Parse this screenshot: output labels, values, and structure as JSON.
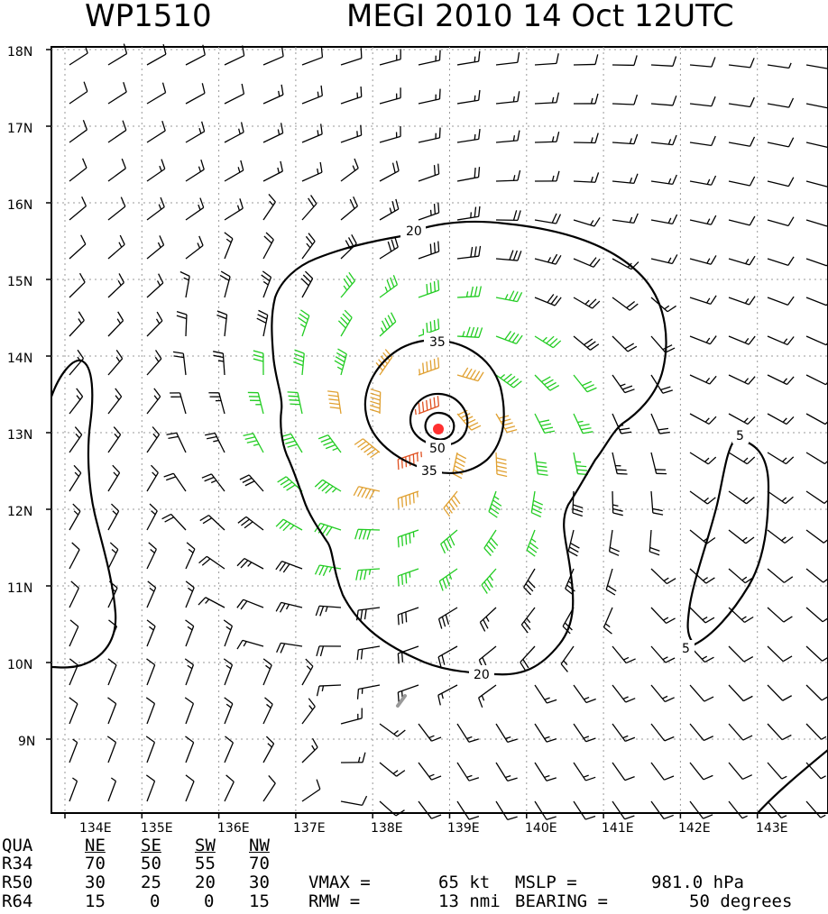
{
  "header": {
    "storm_id": "WP1510",
    "storm_info": "MEGI 2010 14 Oct 12UTC"
  },
  "map": {
    "lat_ticks": [
      "18N",
      "17N",
      "16N",
      "15N",
      "14N",
      "13N",
      "12N",
      "11N",
      "10N",
      "9N"
    ],
    "lon_ticks": [
      "134E",
      "135E",
      "136E",
      "137E",
      "138E",
      "139E",
      "140E",
      "141E",
      "142E",
      "143E"
    ],
    "contour_labels": {
      "c20_top": "20",
      "c20_bottom": "20",
      "c35_top": "35",
      "c35_bottom": "35",
      "c50": "50",
      "c5_top": "5",
      "c5_bottom": "5"
    },
    "colors": {
      "barb_default": "#000000",
      "barb_34kt": "#22cc22",
      "barb_50kt": "#e0a030",
      "barb_64kt": "#e05020",
      "center": "#ff3030",
      "grid": "#999999"
    },
    "center": {
      "lat": 13.05,
      "lon": 138.6
    }
  },
  "radii_table": {
    "columns": [
      "QUA",
      "NE",
      "SE",
      "SW",
      "NW"
    ],
    "rows": [
      {
        "label": "R34",
        "values": [
          "70",
          "50",
          "55",
          "70"
        ]
      },
      {
        "label": "R50",
        "values": [
          "30",
          "25",
          "20",
          "30"
        ]
      },
      {
        "label": "R64",
        "values": [
          "15",
          "0",
          "0",
          "15"
        ]
      }
    ]
  },
  "stats": {
    "vmax_label": "VMAX =",
    "vmax_value": "65 kt",
    "mslp_label": "MSLP =",
    "mslp_value": "981.0 hPa",
    "rmw_label": "RMW =",
    "rmw_value": "13 nmi",
    "bearing_label": "BEARING =",
    "bearing_value": "50 degrees"
  }
}
